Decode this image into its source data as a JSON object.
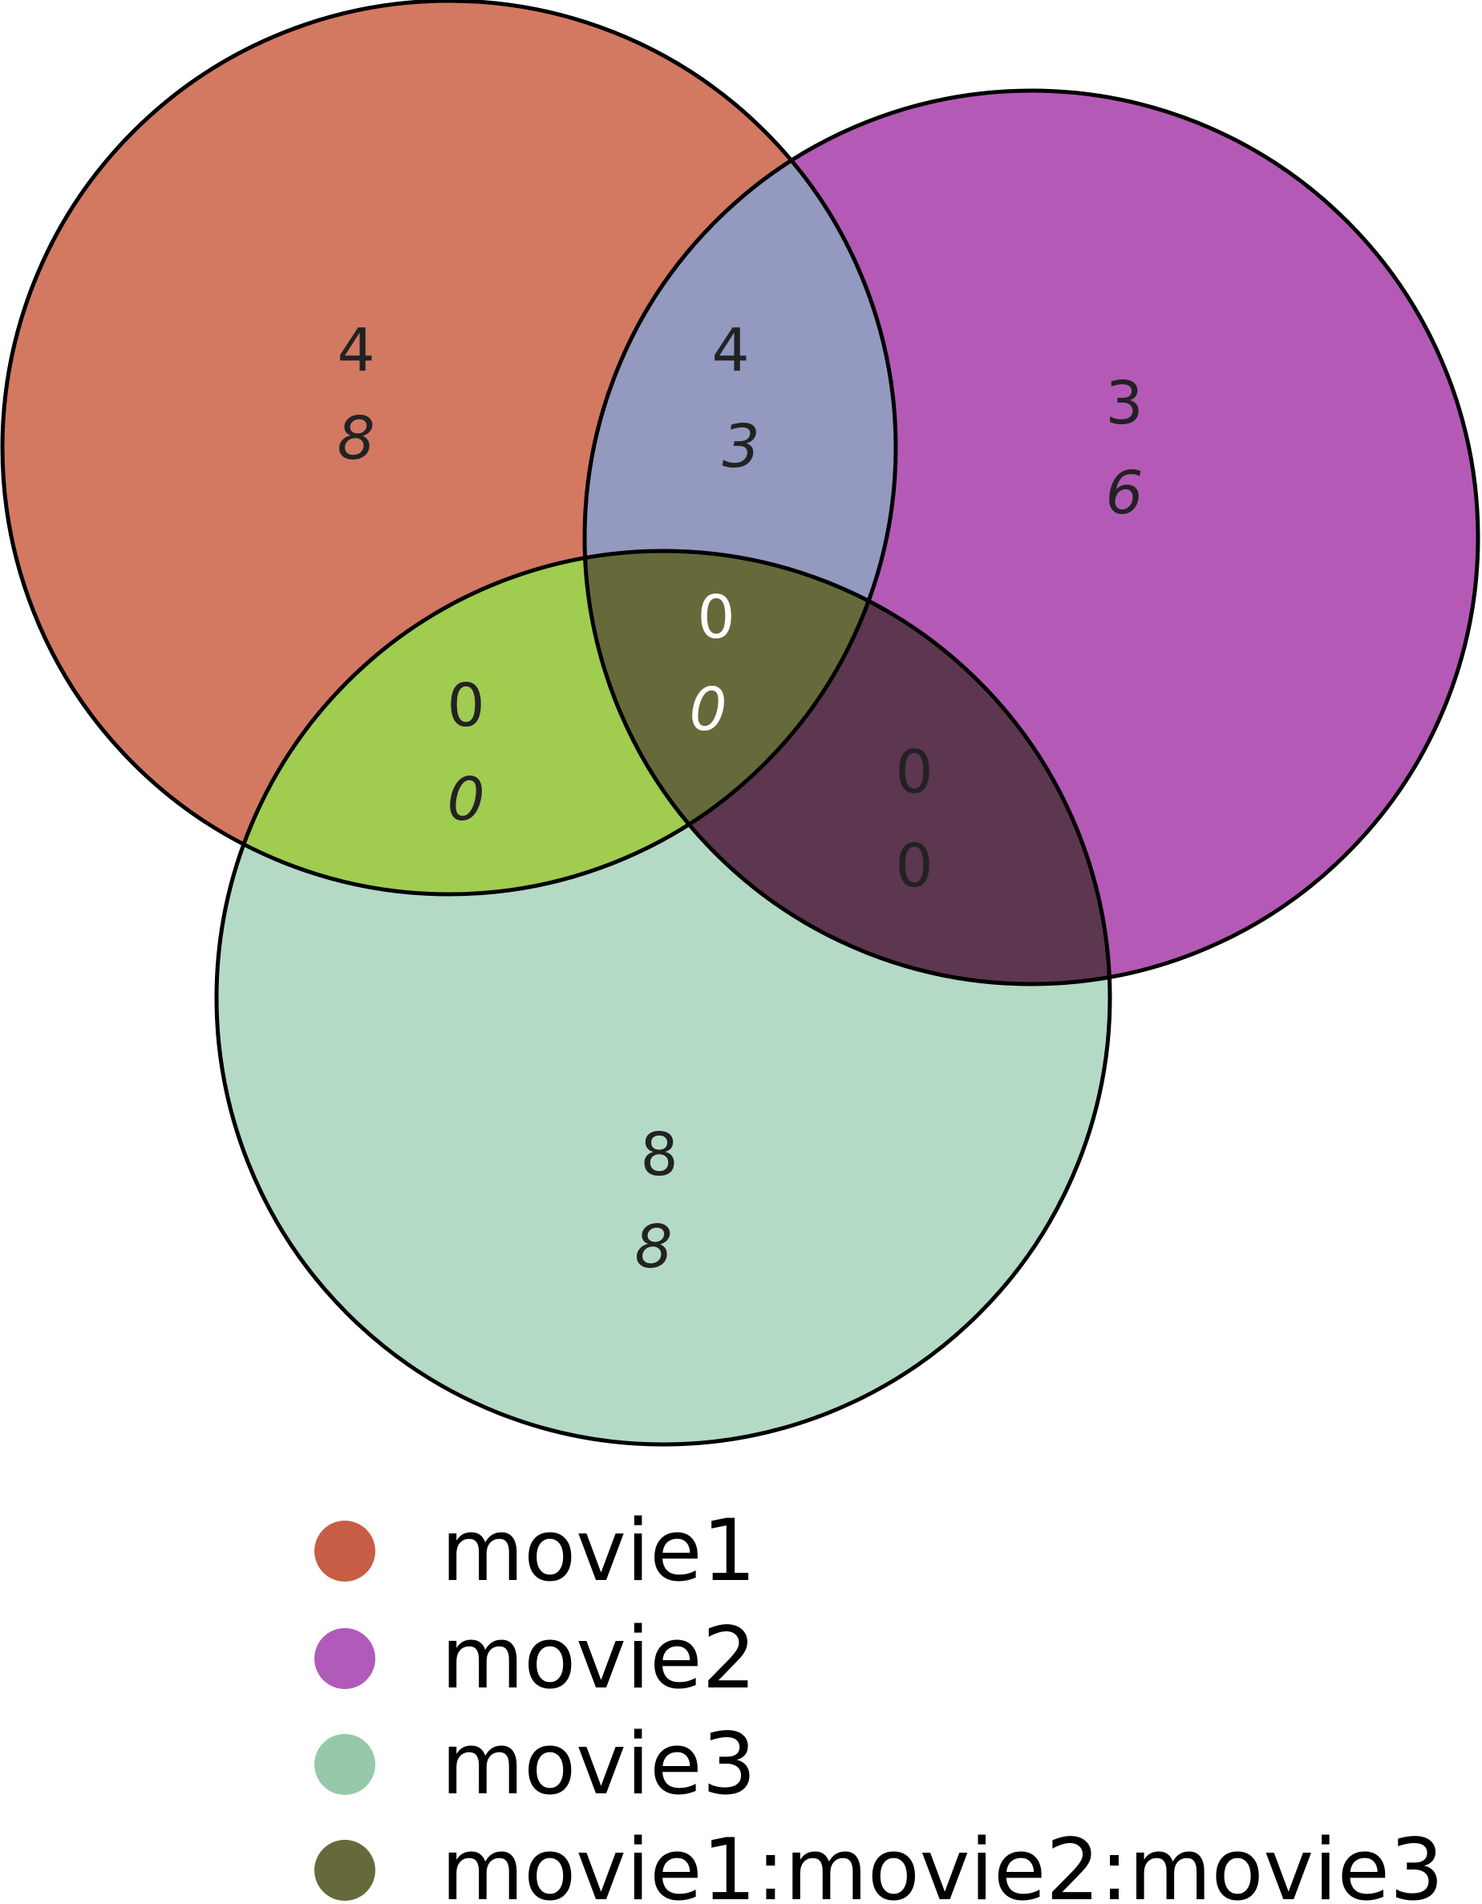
{
  "diagram": {
    "type": "venn-3",
    "sets": [
      {
        "id": "movie1",
        "label": "movie1",
        "color": "#C75D44"
      },
      {
        "id": "movie2",
        "label": "movie2",
        "color": "#B05ABA"
      },
      {
        "id": "movie3",
        "label": "movie3",
        "color": "#96C9A9"
      }
    ],
    "regions": {
      "only_movie1": {
        "line1": "4",
        "line2": "8"
      },
      "only_movie2": {
        "line1": "3",
        "line2": "6"
      },
      "only_movie3": {
        "line1": "8",
        "line2": "8"
      },
      "movie1_movie2": {
        "line1": "4",
        "line2": "3"
      },
      "movie1_movie3": {
        "line1": "0",
        "line2": "0"
      },
      "movie2_movie3": {
        "line1": "0",
        "line2": "0"
      },
      "movie1_movie2_movie3": {
        "line1": "0",
        "line2": "0"
      }
    },
    "region_colors": {
      "only_movie1": "#D37962",
      "only_movie2": "#B45AB6",
      "only_movie3": "#B4DAC6",
      "movie1_movie2": "#9399BF",
      "movie1_movie3": "#A0CC50",
      "movie2_movie3": "#5D364F",
      "movie1_movie2_movie3": "#666A3A"
    },
    "text_colors": {
      "dark": "#222222",
      "light": "#ffffff"
    }
  },
  "legend": {
    "items": [
      {
        "label": "movie1",
        "color": "#C75D44"
      },
      {
        "label": "movie2",
        "color": "#B05ABA"
      },
      {
        "label": "movie3",
        "color": "#96C9A9"
      },
      {
        "label": "movie1:movie2:movie3",
        "color": "#666A3A"
      }
    ]
  }
}
